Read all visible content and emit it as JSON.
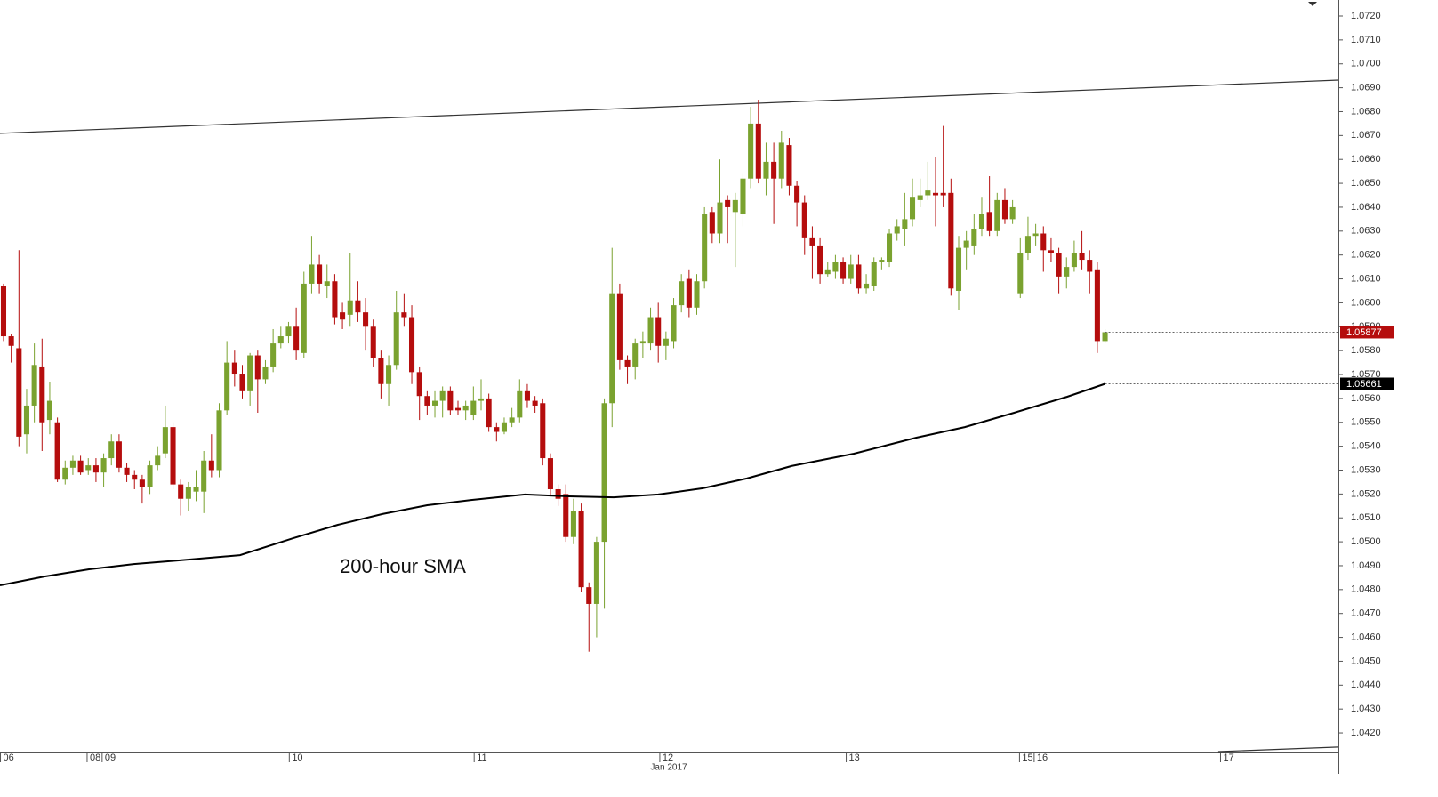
{
  "chart_data": {
    "type": "candlestick",
    "up_color": "#7aa22f",
    "down_color": "#b50d0d",
    "open": [
      1.0607,
      1.0586,
      1.0581,
      1.0545,
      1.0557,
      1.0573,
      1.0551,
      1.055,
      1.0526,
      1.0531,
      1.0534,
      1.053,
      1.0532,
      1.0529,
      1.0535,
      1.0542,
      1.0531,
      1.0528,
      1.0526,
      1.0523,
      1.0532,
      1.0537,
      1.0548,
      1.0524,
      1.0518,
      1.0521,
      1.0521,
      1.0534,
      1.053,
      1.0555,
      1.0575,
      1.057,
      1.0563,
      1.0578,
      1.0568,
      1.0573,
      1.0583,
      1.0586,
      1.059,
      1.0579,
      1.0608,
      1.0616,
      1.0607,
      1.0609,
      1.0596,
      1.0595,
      1.0601,
      1.0596,
      1.059,
      1.0577,
      1.0566,
      1.0574,
      1.0596,
      1.0594,
      1.0571,
      1.0561,
      1.0557,
      1.0559,
      1.0563,
      1.0556,
      1.0555,
      1.0553,
      1.0559,
      1.056,
      1.0548,
      1.0546,
      1.055,
      1.0552,
      1.0563,
      1.0559,
      1.0558,
      1.0535,
      1.0522,
      1.052,
      1.0502,
      1.0513,
      1.0481,
      1.0474,
      1.05,
      1.0558,
      1.0604,
      1.0576,
      1.0573,
      1.0583,
      1.0583,
      1.0594,
      1.0582,
      1.0584,
      1.0599,
      1.061,
      1.0598,
      1.0609,
      1.0638,
      1.0629,
      1.0643,
      1.0638,
      1.0637,
      1.0652,
      1.0675,
      1.0652,
      1.0659,
      1.0652,
      1.0666,
      1.0649,
      1.0642,
      1.0627,
      1.0624,
      1.0612,
      1.0613,
      1.0617,
      1.061,
      1.0616,
      1.0606,
      1.0607,
      1.0617,
      1.0617,
      1.0629,
      1.0631,
      1.0635,
      1.0643,
      1.0645,
      1.0646,
      1.0646,
      1.0646,
      1.0605,
      1.0623,
      1.0624,
      1.0631,
      1.0638,
      1.063,
      1.0643,
      1.0635,
      1.0604,
      1.0621,
      1.0628,
      1.0629,
      1.0622,
      1.0621,
      1.0611,
      1.0615,
      1.0621,
      1.0618,
      1.0614,
      1.0584
    ],
    "high": [
      1.0608,
      1.0587,
      1.0622,
      1.0564,
      1.0583,
      1.0585,
      1.0567,
      1.0552,
      1.0534,
      1.0536,
      1.0536,
      1.0535,
      1.0535,
      1.0537,
      1.0545,
      1.0545,
      1.0533,
      1.053,
      1.0528,
      1.0534,
      1.054,
      1.0557,
      1.055,
      1.0526,
      1.0525,
      1.053,
      1.0538,
      1.0545,
      1.0558,
      1.0584,
      1.058,
      1.0574,
      1.0579,
      1.058,
      1.0576,
      1.0589,
      1.059,
      1.0592,
      1.0598,
      1.0613,
      1.0628,
      1.062,
      1.0616,
      1.0612,
      1.06,
      1.0621,
      1.0609,
      1.0602,
      1.0593,
      1.058,
      1.0578,
      1.0605,
      1.0604,
      1.0599,
      1.0573,
      1.0563,
      1.0563,
      1.0565,
      1.0565,
      1.0559,
      1.0559,
      1.0565,
      1.0568,
      1.0562,
      1.055,
      1.0552,
      1.0556,
      1.0568,
      1.0566,
      1.0561,
      1.056,
      1.0537,
      1.0524,
      1.0524,
      1.0518,
      1.0516,
      1.0483,
      1.0502,
      1.056,
      1.0623,
      1.0608,
      1.0578,
      1.0585,
      1.0588,
      1.0598,
      1.06,
      1.0588,
      1.0602,
      1.0612,
      1.0614,
      1.0612,
      1.064,
      1.064,
      1.066,
      1.0645,
      1.0646,
      1.0654,
      1.0682,
      1.0685,
      1.0667,
      1.0667,
      1.0672,
      1.0669,
      1.0651,
      1.0645,
      1.0632,
      1.0627,
      1.0617,
      1.062,
      1.0619,
      1.062,
      1.062,
      1.0612,
      1.0619,
      1.0619,
      1.0631,
      1.0635,
      1.0646,
      1.0652,
      1.0652,
      1.0659,
      1.0661,
      1.0674,
      1.0652,
      1.0628,
      1.063,
      1.0637,
      1.0644,
      1.0653,
      1.0646,
      1.0648,
      1.0643,
      1.0627,
      1.0636,
      1.0633,
      1.0632,
      1.0627,
      1.0623,
      1.0619,
      1.0626,
      1.063,
      1.0622,
      1.0617,
      1.0589
    ],
    "low": [
      1.0584,
      1.0575,
      1.054,
      1.0537,
      1.055,
      1.0538,
      1.0545,
      1.0525,
      1.0524,
      1.0528,
      1.0528,
      1.0528,
      1.0525,
      1.0523,
      1.0532,
      1.0529,
      1.0525,
      1.0522,
      1.0516,
      1.052,
      1.053,
      1.0535,
      1.0522,
      1.0511,
      1.0513,
      1.0517,
      1.0512,
      1.0527,
      1.0527,
      1.0553,
      1.0565,
      1.056,
      1.0557,
      1.0554,
      1.0566,
      1.0571,
      1.0581,
      1.0583,
      1.0576,
      1.0577,
      1.0604,
      1.0604,
      1.0602,
      1.0591,
      1.0589,
      1.059,
      1.0592,
      1.058,
      1.0573,
      1.056,
      1.0557,
      1.0572,
      1.059,
      1.0566,
      1.0551,
      1.0553,
      1.0552,
      1.0552,
      1.0553,
      1.0553,
      1.0551,
      1.0551,
      1.0555,
      1.0546,
      1.0542,
      1.0545,
      1.0548,
      1.055,
      1.0556,
      1.0554,
      1.0532,
      1.0519,
      1.0515,
      1.05,
      1.0499,
      1.0479,
      1.0454,
      1.046,
      1.0472,
      1.0548,
      1.0572,
      1.0566,
      1.0568,
      1.0577,
      1.058,
      1.0575,
      1.0576,
      1.0581,
      1.0596,
      1.0594,
      1.0595,
      1.0606,
      1.0625,
      1.0625,
      1.0625,
      1.0615,
      1.0632,
      1.0648,
      1.065,
      1.0645,
      1.0633,
      1.0648,
      1.0645,
      1.0632,
      1.062,
      1.061,
      1.0608,
      1.0611,
      1.061,
      1.0608,
      1.0608,
      1.0604,
      1.0604,
      1.0605,
      1.0614,
      1.0615,
      1.0626,
      1.0624,
      1.0632,
      1.064,
      1.0643,
      1.0632,
      1.064,
      1.0603,
      1.0597,
      1.0614,
      1.062,
      1.0628,
      1.0628,
      1.0628,
      1.0633,
      1.0633,
      1.0602,
      1.0618,
      1.0624,
      1.0613,
      1.0617,
      1.0604,
      1.0606,
      1.0613,
      1.0614,
      1.0604,
      1.0579,
      1.0583
    ],
    "close": [
      1.0586,
      1.0582,
      1.0544,
      1.0557,
      1.0574,
      1.055,
      1.0559,
      1.0526,
      1.0531,
      1.0534,
      1.0529,
      1.0532,
      1.0529,
      1.0535,
      1.0542,
      1.0531,
      1.0528,
      1.0526,
      1.0523,
      1.0532,
      1.0536,
      1.0548,
      1.0524,
      1.0518,
      1.0523,
      1.0523,
      1.0534,
      1.053,
      1.0555,
      1.0575,
      1.057,
      1.0563,
      1.0578,
      1.0568,
      1.0573,
      1.0583,
      1.0586,
      1.059,
      1.058,
      1.0608,
      1.0616,
      1.0608,
      1.0609,
      1.0594,
      1.0593,
      1.0601,
      1.0596,
      1.059,
      1.0577,
      1.0566,
      1.0574,
      1.0596,
      1.0594,
      1.0571,
      1.0561,
      1.0557,
      1.0559,
      1.0563,
      1.0555,
      1.0555,
      1.0557,
      1.0559,
      1.056,
      1.0548,
      1.0546,
      1.055,
      1.0552,
      1.0563,
      1.0559,
      1.0557,
      1.0535,
      1.0522,
      1.0518,
      1.0502,
      1.0513,
      1.0481,
      1.0474,
      1.05,
      1.0558,
      1.0604,
      1.0576,
      1.0573,
      1.0583,
      1.0584,
      1.0594,
      1.0582,
      1.0585,
      1.0599,
      1.0609,
      1.0598,
      1.0609,
      1.0637,
      1.0629,
      1.0642,
      1.064,
      1.0643,
      1.0652,
      1.0675,
      1.0652,
      1.0659,
      1.0652,
      1.0667,
      1.0649,
      1.0642,
      1.0627,
      1.0624,
      1.0612,
      1.0614,
      1.0617,
      1.061,
      1.0616,
      1.0606,
      1.0608,
      1.0617,
      1.0618,
      1.0629,
      1.0632,
      1.0635,
      1.0644,
      1.0645,
      1.0647,
      1.0645,
      1.0645,
      1.0606,
      1.0623,
      1.0626,
      1.0631,
      1.0637,
      1.063,
      1.0643,
      1.0635,
      1.064,
      1.0621,
      1.0628,
      1.0629,
      1.0622,
      1.0621,
      1.0611,
      1.0615,
      1.0621,
      1.0618,
      1.0613,
      1.0584,
      1.05877
    ],
    "sma": {
      "color": "#000000",
      "x": [
        -0.46,
        5.3,
        11.1,
        16.9,
        22.6,
        30.7,
        37.6,
        43.4,
        49.2,
        55.0,
        60.7,
        67.7,
        73.4,
        79.2,
        85.0,
        90.8,
        96.5,
        102.3,
        110.4,
        118.5,
        124.8,
        131.2,
        138.1,
        143
      ],
      "values": [
        1.04818,
        1.04855,
        1.04885,
        1.04907,
        1.04922,
        1.04944,
        1.05015,
        1.05071,
        1.05116,
        1.05153,
        1.05175,
        1.05198,
        1.0519,
        1.05186,
        1.05198,
        1.05224,
        1.05265,
        1.05317,
        1.05369,
        1.05436,
        1.0548,
        1.0554,
        1.05607,
        1.05661
      ]
    },
    "annotation": "200-hour SMA",
    "trendlines": [
      {
        "color": "#333333",
        "x": [
          -0.46,
          173.3
        ],
        "values": [
          1.06709,
          1.06932
        ]
      },
      {
        "color": "#333333",
        "x": [
          157.7,
          173.3
        ],
        "values": [
          1.04122,
          1.04141
        ]
      }
    ],
    "price_markers": [
      {
        "value": 1.05877,
        "label": "1.05877",
        "color": "#b50d0d"
      },
      {
        "value": 1.05661,
        "label": "1.05661",
        "color": "#000000"
      }
    ],
    "grid": false,
    "ylim": [
      1.04122,
      1.07267
    ],
    "yticks": [
      {
        "value": 1.042,
        "label": "1.0420"
      },
      {
        "value": 1.043,
        "label": "1.0430"
      },
      {
        "value": 1.044,
        "label": "1.0440"
      },
      {
        "value": 1.045,
        "label": "1.0450"
      },
      {
        "value": 1.046,
        "label": "1.0460"
      },
      {
        "value": 1.047,
        "label": "1.0470"
      },
      {
        "value": 1.048,
        "label": "1.0480"
      },
      {
        "value": 1.049,
        "label": "1.0490"
      },
      {
        "value": 1.05,
        "label": "1.0500"
      },
      {
        "value": 1.051,
        "label": "1.0510"
      },
      {
        "value": 1.052,
        "label": "1.0520"
      },
      {
        "value": 1.053,
        "label": "1.0530"
      },
      {
        "value": 1.054,
        "label": "1.0540"
      },
      {
        "value": 1.055,
        "label": "1.0550"
      },
      {
        "value": 1.056,
        "label": "1.0560"
      },
      {
        "value": 1.057,
        "label": "1.0570"
      },
      {
        "value": 1.058,
        "label": "1.0580"
      },
      {
        "value": 1.059,
        "label": "1.0590"
      },
      {
        "value": 1.06,
        "label": "1.0600"
      },
      {
        "value": 1.061,
        "label": "1.0610"
      },
      {
        "value": 1.062,
        "label": "1.0620"
      },
      {
        "value": 1.063,
        "label": "1.0630"
      },
      {
        "value": 1.064,
        "label": "1.0640"
      },
      {
        "value": 1.065,
        "label": "1.0650"
      },
      {
        "value": 1.066,
        "label": "1.0660"
      },
      {
        "value": 1.067,
        "label": "1.0670"
      },
      {
        "value": 1.068,
        "label": "1.0680"
      },
      {
        "value": 1.069,
        "label": "1.0690"
      },
      {
        "value": 1.07,
        "label": "1.0700"
      },
      {
        "value": 1.071,
        "label": "1.0710"
      },
      {
        "value": 1.072,
        "label": "1.0720"
      }
    ],
    "xlim": [
      -0.46,
      173.3
    ],
    "xticks": [
      {
        "value": -0.4,
        "label": "06"
      },
      {
        "value": 10.85,
        "label": "08"
      },
      {
        "value": 12.8,
        "label": "09"
      },
      {
        "value": 37.1,
        "label": "10"
      },
      {
        "value": 61.1,
        "label": "11"
      },
      {
        "value": 85.2,
        "label": "12"
      },
      {
        "value": 109.4,
        "label": "13"
      },
      {
        "value": 131.9,
        "label": "15"
      },
      {
        "value": 133.8,
        "label": "16"
      },
      {
        "value": 158.0,
        "label": "17"
      }
    ],
    "x_label": "Jan 2017"
  }
}
